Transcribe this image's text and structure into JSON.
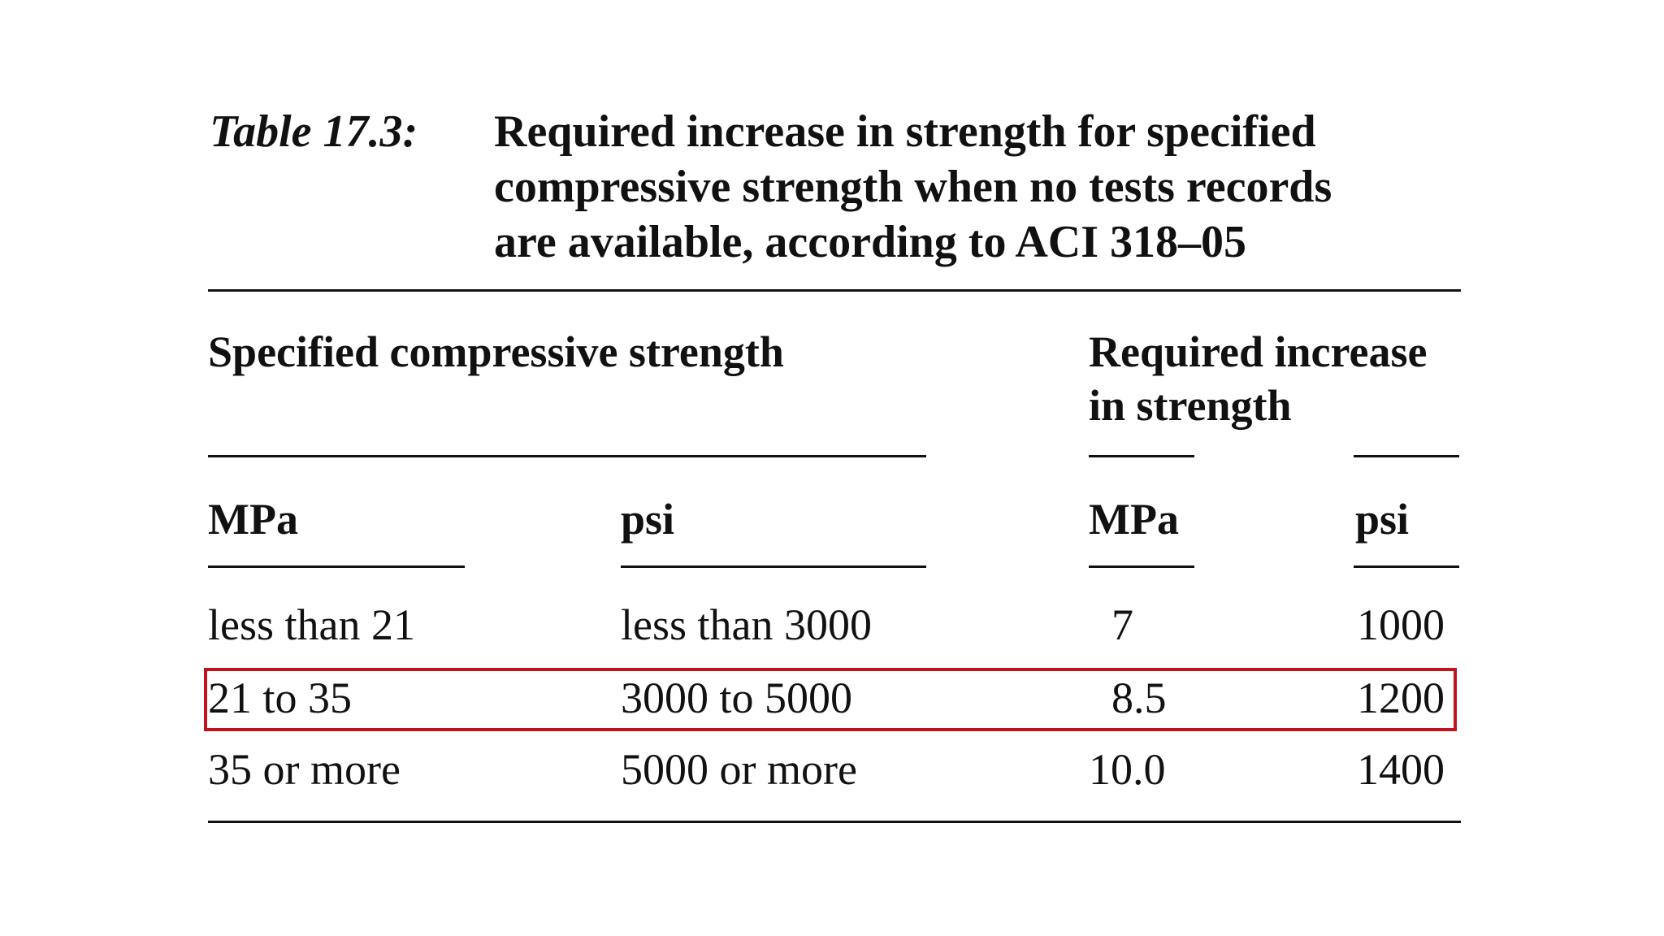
{
  "caption": {
    "label": "Table 17.3:",
    "lines": [
      "Required increase in strength for specified",
      "compressive strength when no tests records",
      "are available, according to ACI 318–05"
    ]
  },
  "headers": {
    "group_left": "Specified compressive strength",
    "group_right_line1": "Required increase",
    "group_right_line2": "in strength",
    "col1": "MPa",
    "col2": "psi",
    "col3": "MPa",
    "col4": "psi"
  },
  "rows": [
    {
      "mpa": "less than 21",
      "psi": "less than 3000",
      "inc_mpa": "7",
      "inc_psi": "1000"
    },
    {
      "mpa": "21 to 35",
      "psi": "3000 to 5000",
      "inc_mpa": "8.5",
      "inc_psi": "1200"
    },
    {
      "mpa": "35 or more",
      "psi": "5000 or more",
      "inc_mpa": "10.0",
      "inc_psi": "1400"
    }
  ],
  "highlight": {
    "row_index": 1,
    "color": "#c0141c"
  }
}
